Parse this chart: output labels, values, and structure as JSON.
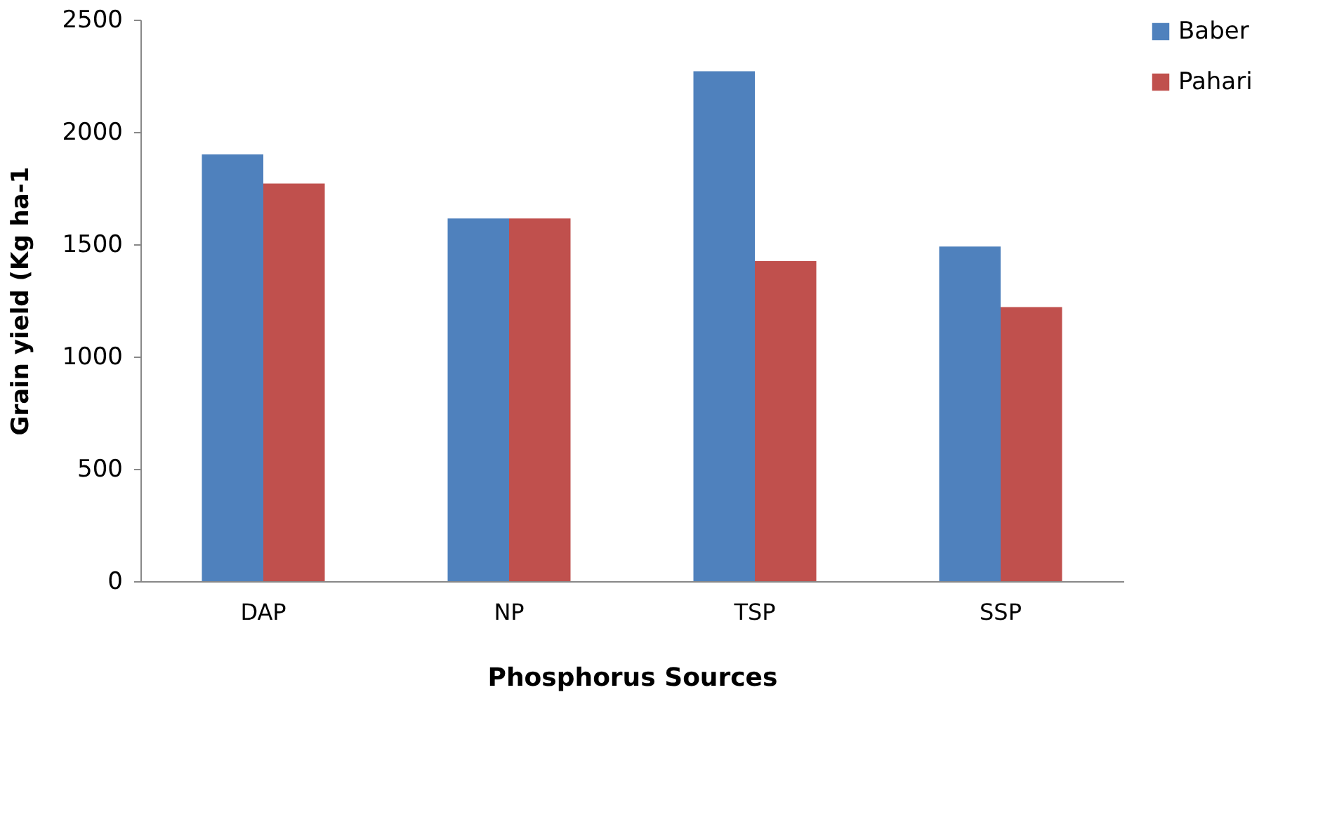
{
  "chart_data": {
    "type": "bar",
    "xlabel": "Phosphorus Sources",
    "ylabel": "Grain yield (Kg ha-1",
    "categories": [
      "DAP",
      "NP",
      "TSP",
      "SSP"
    ],
    "series": [
      {
        "name": "Baber",
        "color": "#4f81bd",
        "values": [
          1900,
          1615,
          2270,
          1490
        ]
      },
      {
        "name": "Pahari",
        "color": "#c0504d",
        "values": [
          1770,
          1615,
          1425,
          1220
        ]
      }
    ],
    "ylim": [
      0,
      2500
    ],
    "yticks": [
      0,
      500,
      1000,
      1500,
      2000,
      2500
    ],
    "grid": false,
    "legend": "right"
  }
}
